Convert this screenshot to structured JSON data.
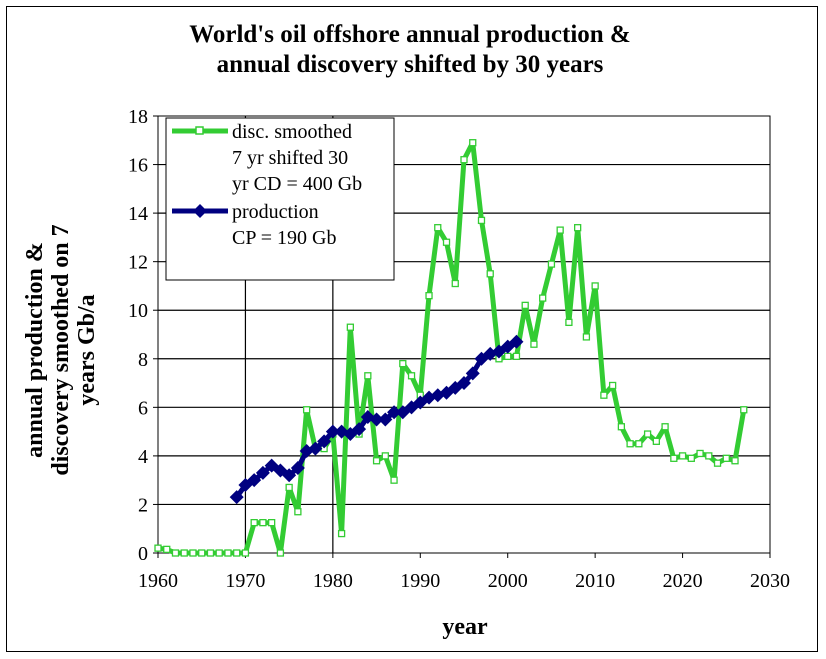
{
  "chart_data": {
    "type": "line",
    "title_line1": "World's oil offshore annual production &",
    "title_line2": "annual discovery shifted by 30 years",
    "ylabel_line1": "annual production &",
    "ylabel_line2": "discovery smoothed on 7",
    "ylabel_line3": "years Gb/a",
    "xlabel": "year",
    "xlim": [
      1960,
      2030
    ],
    "ylim": [
      0,
      18
    ],
    "xticks": [
      1960,
      1970,
      1980,
      1990,
      2000,
      2010,
      2020,
      2030
    ],
    "yticks": [
      0,
      2,
      4,
      6,
      8,
      10,
      12,
      14,
      16,
      18
    ],
    "grid": "horizontal major lines plus vertical lines at 1970 and 1980",
    "legend_position": "top-left",
    "colors": {
      "discovery": "#33cc33",
      "production": "#000080"
    },
    "series": [
      {
        "name_line1": "disc. smoothed",
        "name_line2": "7 yr shifted 30",
        "name_line3": "yr CD = 400 Gb",
        "marker": "open-square",
        "x": [
          1960,
          1961,
          1962,
          1963,
          1964,
          1965,
          1966,
          1967,
          1968,
          1969,
          1970,
          1971,
          1972,
          1973,
          1974,
          1975,
          1976,
          1977,
          1978,
          1979,
          1980,
          1981,
          1982,
          1983,
          1984,
          1985,
          1986,
          1987,
          1988,
          1989,
          1990,
          1991,
          1992,
          1993,
          1994,
          1995,
          1996,
          1997,
          1998,
          1999,
          2000,
          2001,
          2002,
          2003,
          2004,
          2005,
          2006,
          2007,
          2008,
          2009,
          2010,
          2011,
          2012,
          2013,
          2014,
          2015,
          2016,
          2017,
          2018,
          2019,
          2020,
          2021,
          2022,
          2023,
          2024,
          2025,
          2026,
          2027
        ],
        "values": [
          0.2,
          0.15,
          0.0,
          0.0,
          0.0,
          0.0,
          0.0,
          0.0,
          0.0,
          0.0,
          0.0,
          1.25,
          1.25,
          1.25,
          0.0,
          2.7,
          1.7,
          5.9,
          4.3,
          4.3,
          4.9,
          0.8,
          9.3,
          4.9,
          7.3,
          3.8,
          4.0,
          3.0,
          7.8,
          7.3,
          6.5,
          10.6,
          13.4,
          12.8,
          11.1,
          16.2,
          16.9,
          13.7,
          11.5,
          8.0,
          8.1,
          8.1,
          10.2,
          8.6,
          10.5,
          11.9,
          13.3,
          9.5,
          13.4,
          8.9,
          11.0,
          6.5,
          6.9,
          5.2,
          4.5,
          4.5,
          4.9,
          4.6,
          5.2,
          3.9,
          4.0,
          3.9,
          4.1,
          4.0,
          3.7,
          3.9,
          3.8,
          5.9
        ]
      },
      {
        "name_line1": "production",
        "name_line2": "CP = 190 Gb",
        "marker": "filled-diamond",
        "x": [
          1969,
          1970,
          1971,
          1972,
          1973,
          1974,
          1975,
          1976,
          1977,
          1978,
          1979,
          1980,
          1981,
          1982,
          1983,
          1984,
          1985,
          1986,
          1987,
          1988,
          1989,
          1990,
          1991,
          1992,
          1993,
          1994,
          1995,
          1996,
          1997,
          1998,
          1999,
          2000,
          2001
        ],
        "values": [
          2.3,
          2.8,
          3.0,
          3.3,
          3.6,
          3.4,
          3.2,
          3.5,
          4.2,
          4.3,
          4.6,
          5.0,
          5.0,
          4.9,
          5.1,
          5.6,
          5.5,
          5.5,
          5.8,
          5.8,
          6.0,
          6.2,
          6.4,
          6.5,
          6.6,
          6.8,
          7.0,
          7.4,
          8.0,
          8.2,
          8.3,
          8.5,
          8.7
        ]
      }
    ]
  }
}
